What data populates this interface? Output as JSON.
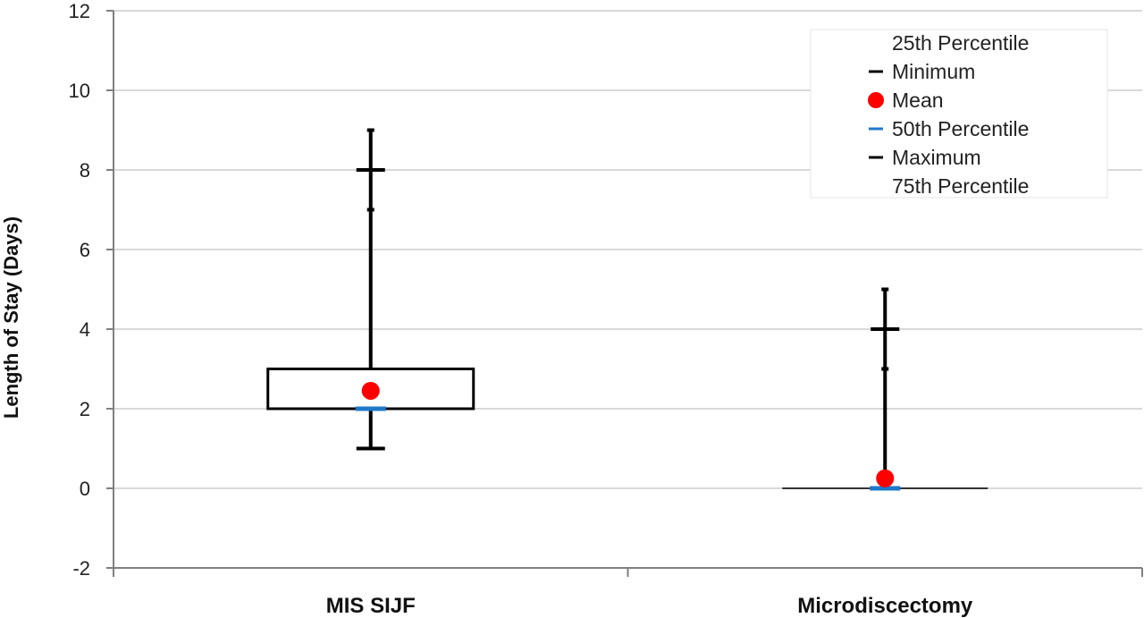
{
  "chart_data": {
    "type": "box",
    "ylabel": "Length of Stay (Days)",
    "xlabel": "",
    "ylim": [
      -2,
      12
    ],
    "yticks": [
      "-2",
      "0",
      "2",
      "4",
      "6",
      "8",
      "10",
      "12"
    ],
    "grid": true,
    "legend_placement": "top-right",
    "categories": [
      "MIS SIJF",
      "Microdiscectomy"
    ],
    "boxes": [
      {
        "category": "MIS SIJF",
        "p25": 2,
        "minimum": 1,
        "mean": 2.45,
        "p50": 2,
        "maximum": 8,
        "p75": 3,
        "whisker_top": 9,
        "extra_tick": 7
      },
      {
        "category": "Microdiscectomy",
        "p25": 0,
        "minimum": 0,
        "mean": 0.25,
        "p50": 0,
        "maximum": 4,
        "p75": 0,
        "whisker_top": 5,
        "extra_tick": 3
      }
    ],
    "legend": [
      {
        "label": "25th Percentile",
        "marker": "none"
      },
      {
        "label": "Minimum",
        "marker": "dash",
        "color": "#000000"
      },
      {
        "label": "Mean",
        "marker": "dot",
        "color": "#ff0000"
      },
      {
        "label": "50th Percentile",
        "marker": "dash",
        "color": "#1f78c8"
      },
      {
        "label": "Maximum",
        "marker": "dash",
        "color": "#000000"
      },
      {
        "label": "75th Percentile",
        "marker": "none"
      }
    ],
    "colors": {
      "mean": "#ff0000",
      "median": "#1f78c8",
      "box": "#000000",
      "grid": "#d9d9d9",
      "axis": "#808080"
    }
  }
}
